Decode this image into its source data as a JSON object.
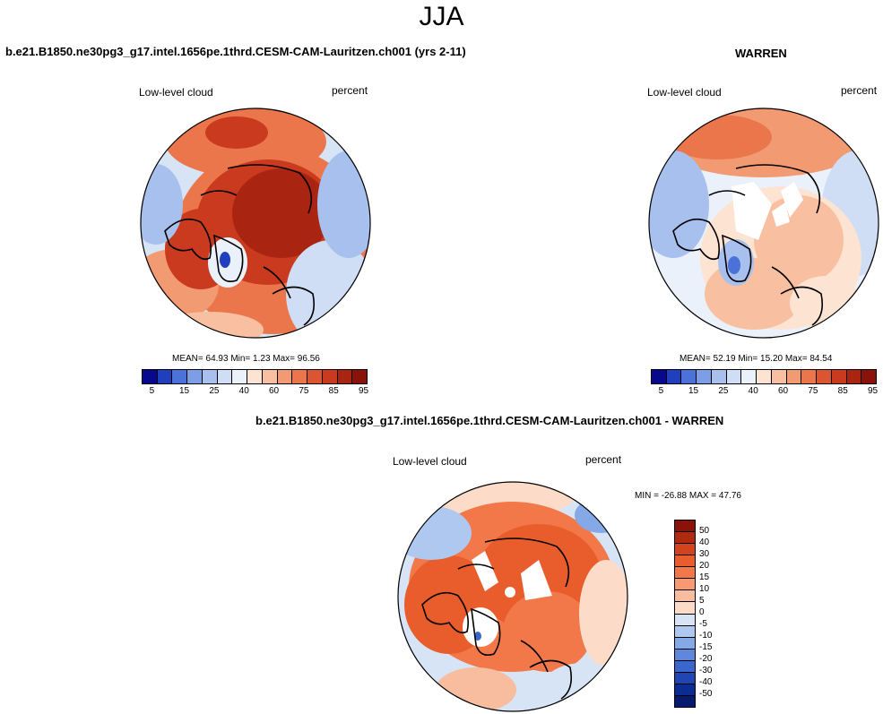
{
  "season": "JJA",
  "panel_test": {
    "title": "b.e21.B1850.ne30pg3_g17.intel.1656pe.1thrd.CESM-CAM-Lauritzen.ch001 (yrs 2-11)",
    "variable": "Low-level cloud",
    "units": "percent",
    "stats": "MEAN=  64.93  Min=   1.23  Max=  96.56",
    "mean": 64.93,
    "min": 1.23,
    "max": 96.56
  },
  "panel_obs": {
    "title": "WARREN",
    "variable": "Low-level cloud",
    "units": "percent",
    "stats": "MEAN=  52.19  Min=  15.20  Max=  84.54",
    "mean": 52.19,
    "min": 15.2,
    "max": 84.54
  },
  "panel_diff": {
    "title": "b.e21.B1850.ne30pg3_g17.intel.1656pe.1thrd.CESM-CAM-Lauritzen.ch001 - WARREN",
    "variable": "Low-level cloud",
    "units": "percent",
    "stats": "MIN = -26.88 MAX =  47.76",
    "min": -26.88,
    "max": 47.76
  },
  "colorbar_abs": {
    "labels": [
      "5",
      "15",
      "25",
      "40",
      "60",
      "75",
      "85",
      "95"
    ],
    "colors": [
      "#08088f",
      "#1f3fbf",
      "#4a72d8",
      "#7c9ee6",
      "#a8c0ee",
      "#d0def5",
      "#eaf1fa",
      "#fde3d2",
      "#f8bfa0",
      "#f29a72",
      "#ec764b",
      "#dd5430",
      "#c93a1e",
      "#a92512",
      "#8a1208"
    ]
  },
  "colorbar_diff": {
    "labels": [
      "50",
      "40",
      "30",
      "20",
      "15",
      "10",
      "5",
      "0",
      "-5",
      "-10",
      "-15",
      "-20",
      "-30",
      "-40",
      "-50"
    ],
    "colors": [
      "#8a1208",
      "#b02a12",
      "#d2431e",
      "#e95d2c",
      "#f2784a",
      "#f59a73",
      "#f8bc9e",
      "#fcdcc8",
      "#d6e4f6",
      "#aec8ef",
      "#85a8e6",
      "#5f88dc",
      "#3a66cd",
      "#1f46b2",
      "#0a2c93",
      "#061a70"
    ]
  }
}
